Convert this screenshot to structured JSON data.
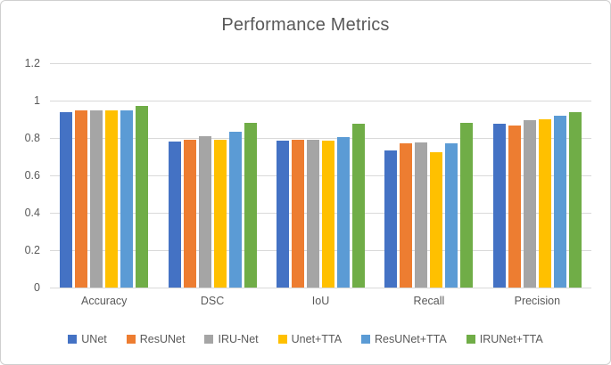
{
  "chart_data": {
    "type": "bar",
    "title": "Performance Metrics",
    "xlabel": "",
    "ylabel": "",
    "categories": [
      "Accuracy",
      "DSC",
      "IoU",
      "Recall",
      "Precision"
    ],
    "series": [
      {
        "name": "UNet",
        "color": "#4472C4",
        "values": [
          0.94,
          0.78,
          0.785,
          0.735,
          0.875
        ]
      },
      {
        "name": "ResUNet",
        "color": "#ED7D31",
        "values": [
          0.948,
          0.79,
          0.793,
          0.77,
          0.865
        ]
      },
      {
        "name": "IRU-Net",
        "color": "#A5A5A5",
        "values": [
          0.95,
          0.81,
          0.79,
          0.778,
          0.895
        ]
      },
      {
        "name": "Unet+TTA",
        "color": "#FFC000",
        "values": [
          0.948,
          0.79,
          0.785,
          0.725,
          0.9
        ]
      },
      {
        "name": "ResUNet+TTA",
        "color": "#5B9BD5",
        "values": [
          0.95,
          0.835,
          0.806,
          0.77,
          0.92
        ]
      },
      {
        "name": "IRUNet+TTA",
        "color": "#70AD47",
        "values": [
          0.972,
          0.879,
          0.875,
          0.882,
          0.937
        ]
      }
    ],
    "ylim": [
      0,
      1.2
    ],
    "yticks": [
      {
        "value": 0,
        "label": "0"
      },
      {
        "value": 0.2,
        "label": "0.2"
      },
      {
        "value": 0.4,
        "label": "0.4"
      },
      {
        "value": 0.6,
        "label": "0.6"
      },
      {
        "value": 0.8,
        "label": "0.8"
      },
      {
        "value": 1,
        "label": "1"
      },
      {
        "value": 1.2,
        "label": "1.2"
      }
    ],
    "grid": true,
    "legend_position": "bottom"
  },
  "colors": {
    "title_text": "#595959",
    "axis_text": "#595959",
    "gridline": "#D9D9D9",
    "background": "#FFFFFF",
    "frame_border": "#CFCFCF"
  }
}
